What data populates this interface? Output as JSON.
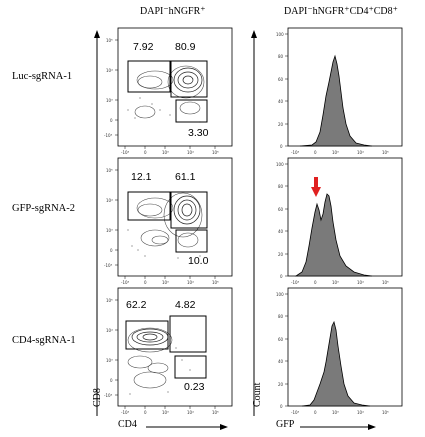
{
  "chart_data": [
    {
      "type": "contour",
      "panel_group": "CD4 vs CD8 flow cytometry",
      "title": "DAPI⁻hNGFR⁺",
      "xlabel": "CD4",
      "ylabel": "CD8",
      "rows": [
        {
          "name": "Luc-sgRNA-1",
          "gates": {
            "CD8_single": "7.92",
            "double_positive": "80.9",
            "CD4_single": "3.30"
          }
        },
        {
          "name": "GFP-sgRNA-2",
          "gates": {
            "CD8_single": "12.1",
            "double_positive": "61.1",
            "CD4_single": "10.0"
          }
        },
        {
          "name": "CD4-sgRNA-1",
          "gates": {
            "CD8_single": "62.2",
            "double_positive": "4.82",
            "CD4_single": "0.23"
          }
        }
      ]
    },
    {
      "type": "histogram",
      "panel_group": "GFP histograms",
      "title": "DAPI⁻hNGFR⁺CD4⁺CD8⁺",
      "xlabel": "GFP",
      "ylabel": "Count",
      "yticks": [
        "100",
        "80",
        "60",
        "40",
        "20",
        "0"
      ],
      "rows": [
        {
          "name": "Luc-sgRNA-1",
          "shape": "unimodal",
          "peak_position": "single"
        },
        {
          "name": "GFP-sgRNA-2",
          "shape": "bimodal",
          "annotation": "red arrow marks GFP-low peak"
        },
        {
          "name": "CD4-sgRNA-1",
          "shape": "unimodal",
          "peak_position": "single"
        }
      ]
    }
  ],
  "labels": {
    "col1_title": "DAPI⁻hNGFR⁺",
    "col2_title": "DAPI⁻hNGFR⁺CD4⁺CD8⁺",
    "row1": "Luc-sgRNA-1",
    "row2": "GFP-sgRNA-2",
    "row3": "CD4-sgRNA-1",
    "cd8_axis": "CD8",
    "cd4_axis": "CD4",
    "count_axis": "Count",
    "gfp_axis": "GFP",
    "p1_tl": "7.92",
    "p1_tr": "80.9",
    "p1_br": "3.30",
    "p2_tl": "12.1",
    "p2_tr": "61.1",
    "p2_br": "10.0",
    "p3_tl": "62.2",
    "p3_tr": "4.82",
    "p3_br": "0.23",
    "x_tick_neg": "-10³",
    "x_tick_0": "0",
    "x_tick_3": "10³",
    "x_tick_4": "10⁴",
    "x_tick_5": "10⁵",
    "y_tick_100": "100",
    "y_tick_80": "80",
    "y_tick_60": "60",
    "y_tick_40": "40",
    "y_tick_20": "20",
    "y_tick_0": "0"
  },
  "colors": {
    "histogram_fill": "#7a7a7a",
    "arrow": "#e02020",
    "line": "#000000"
  }
}
